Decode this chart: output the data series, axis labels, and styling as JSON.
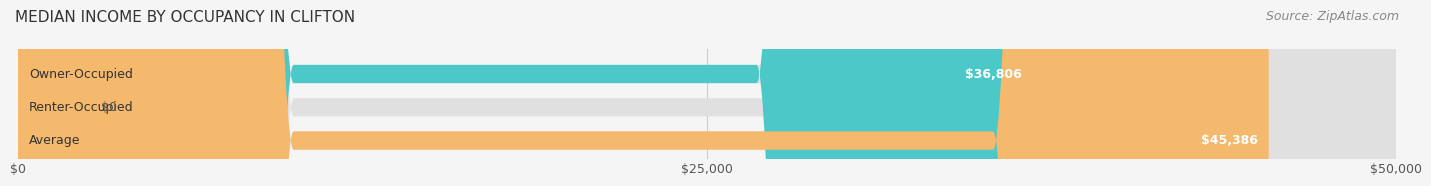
{
  "title": "MEDIAN INCOME BY OCCUPANCY IN CLIFTON",
  "source": "Source: ZipAtlas.com",
  "categories": [
    "Owner-Occupied",
    "Renter-Occupied",
    "Average"
  ],
  "values": [
    36806,
    0,
    45386
  ],
  "bar_colors": [
    "#4dc8c8",
    "#c8a8d8",
    "#f5b96e"
  ],
  "bar_labels": [
    "$36,806",
    "$0",
    "$45,386"
  ],
  "xlim": [
    0,
    50000
  ],
  "xticks": [
    0,
    25000,
    50000
  ],
  "xtick_labels": [
    "$0",
    "$25,000",
    "$50,000"
  ],
  "bg_color": "#f5f5f5",
  "bar_bg_color": "#e0e0e0",
  "title_fontsize": 11,
  "source_fontsize": 9,
  "label_fontsize": 9,
  "tick_fontsize": 9
}
